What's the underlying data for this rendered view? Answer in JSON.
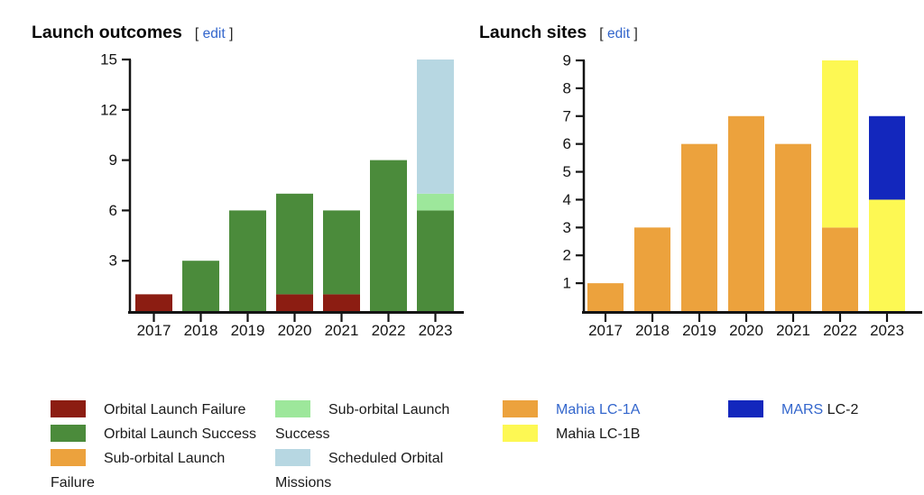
{
  "ui": {
    "edit_label": "edit",
    "bracket_open": "[",
    "bracket_close": "]",
    "link_color": "#3366cc",
    "axis_color": "#141414",
    "background": "#ffffff"
  },
  "chart_data": [
    {
      "type": "bar",
      "stacked": true,
      "title": "Launch outcomes",
      "xlabel": "",
      "ylabel": "",
      "categories": [
        "2017",
        "2018",
        "2019",
        "2020",
        "2021",
        "2022",
        "2023"
      ],
      "series": [
        {
          "name": "Orbital Launch Failure",
          "color": "#8c1d12",
          "values": [
            1,
            0,
            0,
            1,
            1,
            0,
            0
          ]
        },
        {
          "name": "Orbital Launch Success",
          "color": "#4b8b3b",
          "values": [
            0,
            3,
            6,
            6,
            5,
            9,
            6
          ]
        },
        {
          "name": "Sub-orbital Launch Failure",
          "color": "#eca23d",
          "values": [
            0,
            0,
            0,
            0,
            0,
            0,
            0
          ]
        },
        {
          "name": "Sub-orbital Launch Success",
          "color": "#9de79b",
          "values": [
            0,
            0,
            0,
            0,
            0,
            0,
            1
          ]
        },
        {
          "name": "Scheduled Orbital Missions",
          "color": "#b7d7e2",
          "values": [
            0,
            0,
            0,
            0,
            0,
            0,
            8
          ]
        }
      ],
      "ylim": [
        0,
        15
      ],
      "yticks": [
        3,
        6,
        9,
        12,
        15
      ],
      "grid": false,
      "legend_position": "bottom"
    },
    {
      "type": "bar",
      "stacked": true,
      "title": "Launch sites",
      "xlabel": "",
      "ylabel": "",
      "categories": [
        "2017",
        "2018",
        "2019",
        "2020",
        "2021",
        "2022",
        "2023"
      ],
      "series": [
        {
          "name": "Mahia LC-1A",
          "color": "#eca23d",
          "values": [
            1,
            3,
            6,
            7,
            6,
            3,
            0
          ]
        },
        {
          "name": "Mahia LC-1B",
          "color": "#fdf853",
          "values": [
            0,
            0,
            0,
            0,
            0,
            6,
            4
          ]
        },
        {
          "name": "MARS LC-2",
          "color": "#1327bd",
          "values": [
            0,
            0,
            0,
            0,
            0,
            0,
            3
          ]
        }
      ],
      "ylim": [
        0,
        9
      ],
      "yticks": [
        1,
        2,
        3,
        4,
        5,
        6,
        7,
        8,
        9
      ],
      "grid": false,
      "legend_position": "bottom"
    }
  ],
  "charts": [
    {
      "title": "Launch outcomes",
      "legend": {
        "columns": [
          {
            "items": [
              {
                "color": "#8c1d12",
                "parts": [
                  {
                    "text": "Orbital Launch Failure",
                    "link": false
                  }
                ]
              },
              {
                "color": "#4b8b3b",
                "parts": [
                  {
                    "text": "Orbital Launch Success",
                    "link": false
                  }
                ]
              },
              {
                "color": "#eca23d",
                "parts": [
                  {
                    "text": "Sub-orbital Launch Failure",
                    "link": false
                  }
                ]
              }
            ]
          },
          {
            "items": [
              {
                "color": "#9de79b",
                "parts": [
                  {
                    "text": "Sub-orbital Launch Success",
                    "link": false
                  }
                ]
              },
              {
                "color": "#b7d7e2",
                "parts": [
                  {
                    "text": "Scheduled Orbital Missions",
                    "link": false
                  }
                ]
              }
            ]
          }
        ]
      }
    },
    {
      "title": "Launch sites",
      "legend": {
        "columns": [
          {
            "items": [
              {
                "color": "#eca23d",
                "parts": [
                  {
                    "text": "Mahia LC-1A",
                    "link": true
                  }
                ]
              },
              {
                "color": "#fdf853",
                "parts": [
                  {
                    "text": "Mahia LC-1B",
                    "link": false
                  }
                ]
              }
            ]
          },
          {
            "items": [
              {
                "color": "#1327bd",
                "parts": [
                  {
                    "text": "MARS",
                    "link": true
                  },
                  {
                    "text": " LC-2",
                    "link": false
                  }
                ]
              }
            ]
          }
        ]
      }
    }
  ]
}
